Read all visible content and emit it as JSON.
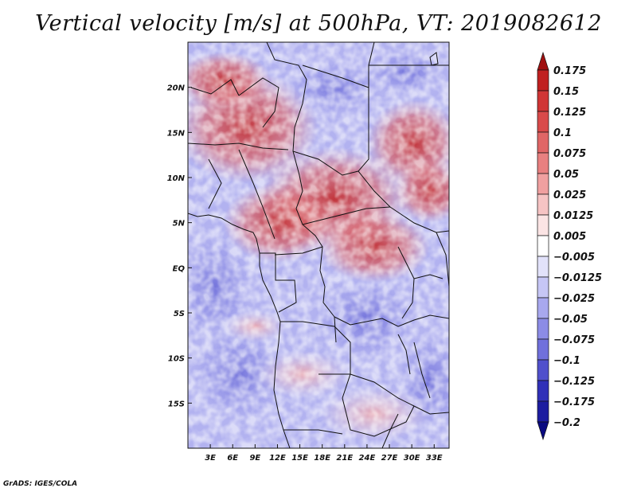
{
  "title": "Vertical velocity [m/s] at 500hPa, VT: 2019082612",
  "credit": "GrADS: IGES/COLA",
  "map": {
    "lon_range": [
      0,
      35
    ],
    "lat_range": [
      -20,
      25
    ],
    "lat_ticks": [
      {
        "value": 20,
        "label": "20N"
      },
      {
        "value": 15,
        "label": "15N"
      },
      {
        "value": 10,
        "label": "10N"
      },
      {
        "value": 5,
        "label": "5N"
      },
      {
        "value": 0,
        "label": "EQ"
      },
      {
        "value": -5,
        "label": "5S"
      },
      {
        "value": -10,
        "label": "10S"
      },
      {
        "value": -15,
        "label": "15S"
      }
    ],
    "lon_ticks": [
      {
        "value": 3,
        "label": "3E"
      },
      {
        "value": 6,
        "label": "6E"
      },
      {
        "value": 9,
        "label": "9E"
      },
      {
        "value": 12,
        "label": "12E"
      },
      {
        "value": 15,
        "label": "15E"
      },
      {
        "value": 18,
        "label": "18E"
      },
      {
        "value": 21,
        "label": "21E"
      },
      {
        "value": 24,
        "label": "24E"
      },
      {
        "value": 27,
        "label": "27E"
      },
      {
        "value": 30,
        "label": "30E"
      },
      {
        "value": 33,
        "label": "33E"
      }
    ]
  },
  "colorbar": {
    "labels": [
      "0.175",
      "0.15",
      "0.125",
      "0.1",
      "0.075",
      "0.05",
      "0.025",
      "0.0125",
      "0.005",
      "−0.005",
      "−0.0125",
      "−0.025",
      "−0.05",
      "−0.075",
      "−0.1",
      "−0.125",
      "−0.175",
      "−0.2"
    ],
    "colors": [
      "#a01010",
      "#c02020",
      "#d03535",
      "#d94a4a",
      "#e06666",
      "#e88080",
      "#f0a0a0",
      "#f6c4c4",
      "#fbe4e4",
      "#ffffff",
      "#e2e2fa",
      "#c6c6f5",
      "#a8a8ee",
      "#8c8ce6",
      "#7070dc",
      "#5050cc",
      "#3030b8",
      "#1c1ca0",
      "#0a0a80"
    ]
  }
}
